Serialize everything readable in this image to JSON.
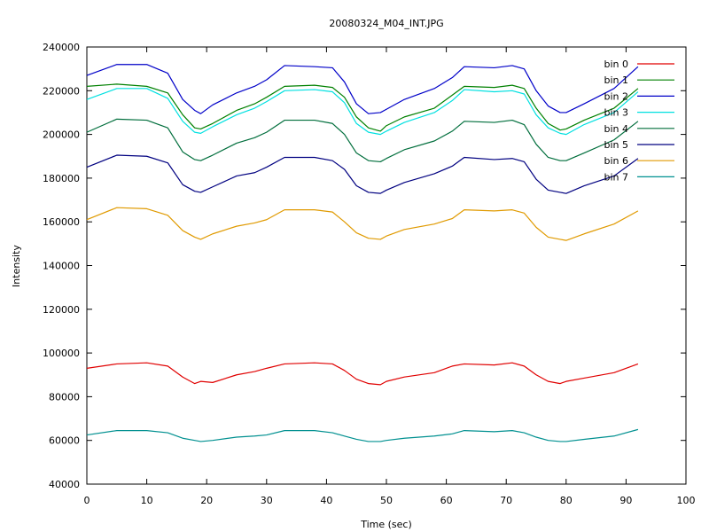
{
  "chart_data": {
    "type": "line",
    "title": "20080324_M04_INT.JPG",
    "xlabel": "Time (sec)",
    "ylabel": "Intensity",
    "xlim": [
      0,
      100
    ],
    "ylim": [
      40000,
      240000
    ],
    "xticks": [
      0,
      10,
      20,
      30,
      40,
      50,
      60,
      70,
      80,
      90,
      100
    ],
    "yticks": [
      40000,
      60000,
      80000,
      100000,
      120000,
      140000,
      160000,
      180000,
      200000,
      220000,
      240000
    ],
    "grid": false,
    "legend_position": "top-right",
    "x": [
      0,
      5,
      10,
      13.5,
      16,
      18,
      19,
      21,
      25,
      28,
      30,
      33,
      38,
      41,
      43,
      45,
      47,
      49,
      50,
      53,
      58,
      61,
      63,
      68,
      71,
      73,
      75,
      77,
      79,
      80,
      83,
      88,
      92
    ],
    "series": [
      {
        "name": "bin 0",
        "color": "#e00000",
        "values": [
          93000,
          95000,
          95500,
          94000,
          89000,
          86000,
          87000,
          86500,
          90000,
          91500,
          93000,
          95000,
          95500,
          95000,
          92000,
          88000,
          86000,
          85500,
          87000,
          89000,
          91000,
          94000,
          95000,
          94500,
          95500,
          94000,
          90000,
          87000,
          86000,
          87000,
          88500,
          91000,
          95000
        ]
      },
      {
        "name": "bin 1",
        "color": "#008000",
        "values": [
          222000,
          223000,
          222000,
          219000,
          209000,
          203000,
          202500,
          205000,
          211000,
          214000,
          217000,
          222000,
          222500,
          221500,
          217000,
          208000,
          203000,
          201500,
          204000,
          208000,
          212000,
          218000,
          222000,
          221500,
          222500,
          221000,
          212000,
          205000,
          202000,
          202500,
          206500,
          212000,
          221000
        ]
      },
      {
        "name": "bin 2",
        "color": "#0000c8",
        "values": [
          227000,
          232000,
          232000,
          228000,
          216000,
          211000,
          209500,
          213500,
          219000,
          222000,
          225000,
          231500,
          231000,
          230500,
          224000,
          214000,
          209500,
          210000,
          211500,
          216000,
          221000,
          226000,
          231000,
          230500,
          231500,
          230000,
          220000,
          213000,
          210000,
          210000,
          214000,
          221000,
          231000
        ]
      },
      {
        "name": "bin 3",
        "color": "#00e0e0",
        "values": [
          216000,
          221000,
          221000,
          216500,
          206000,
          201000,
          200500,
          203500,
          209000,
          212000,
          215000,
          220000,
          220500,
          219500,
          214500,
          205000,
          201000,
          200000,
          201500,
          205500,
          210000,
          215500,
          220500,
          219500,
          220000,
          218500,
          209000,
          203000,
          200500,
          200000,
          204500,
          210000,
          219500
        ]
      },
      {
        "name": "bin 4",
        "color": "#006e3c",
        "values": [
          201000,
          207000,
          206500,
          203000,
          192000,
          188500,
          188000,
          190500,
          196000,
          198500,
          201000,
          206500,
          206500,
          205000,
          200000,
          191500,
          188000,
          187500,
          189000,
          193000,
          197000,
          201500,
          206000,
          205500,
          206500,
          204500,
          195500,
          189500,
          188000,
          188000,
          191500,
          197500,
          206000
        ]
      },
      {
        "name": "bin 5",
        "color": "#000080",
        "values": [
          185000,
          190500,
          190000,
          187000,
          177000,
          174000,
          173500,
          176000,
          181000,
          182500,
          185000,
          189500,
          189500,
          188000,
          184000,
          176500,
          173500,
          173000,
          174500,
          178000,
          182000,
          185500,
          189500,
          188500,
          189000,
          187500,
          179500,
          174500,
          173500,
          173000,
          176500,
          181000,
          189000
        ]
      },
      {
        "name": "bin 6",
        "color": "#e09a00",
        "values": [
          161000,
          166500,
          166000,
          163000,
          156000,
          153000,
          152000,
          154500,
          158000,
          159500,
          161000,
          165500,
          165500,
          164500,
          160000,
          155000,
          152500,
          152000,
          153500,
          156500,
          159000,
          161500,
          165500,
          165000,
          165500,
          164000,
          157500,
          153000,
          152000,
          151500,
          154500,
          159000,
          165000
        ]
      },
      {
        "name": "bin 7",
        "color": "#009090",
        "values": [
          62500,
          64500,
          64500,
          63500,
          61000,
          60000,
          59500,
          60000,
          61500,
          62000,
          62500,
          64500,
          64500,
          63500,
          62000,
          60500,
          59500,
          59500,
          60000,
          61000,
          62000,
          63000,
          64500,
          64000,
          64500,
          63500,
          61500,
          60000,
          59500,
          59500,
          60500,
          62000,
          65000
        ]
      }
    ]
  }
}
